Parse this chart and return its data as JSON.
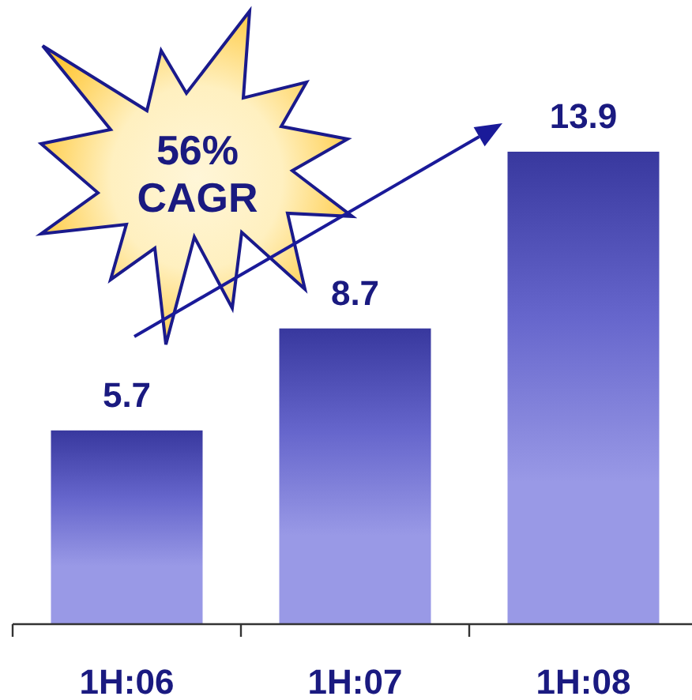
{
  "chart_data": {
    "type": "bar",
    "categories": [
      "1H:06",
      "1H:07",
      "1H:08"
    ],
    "values": [
      5.7,
      8.7,
      13.9
    ],
    "color": "#6666cc",
    "data_labels": true,
    "annotations": [
      "56% CAGR"
    ]
  }
}
